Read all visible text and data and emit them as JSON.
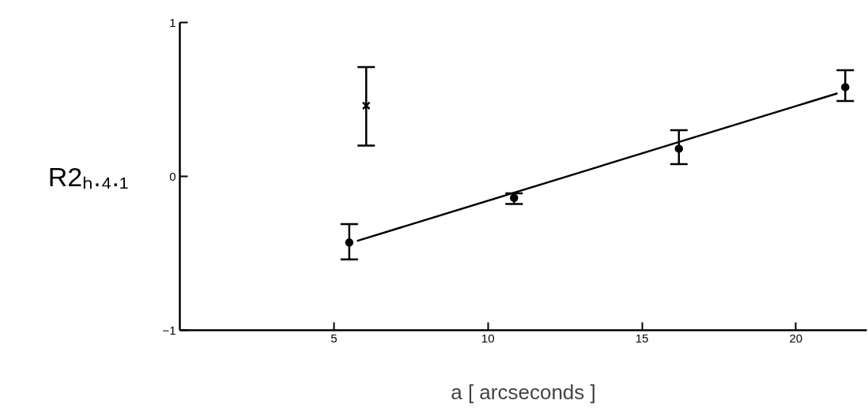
{
  "chart_data": {
    "type": "scatter",
    "xlabel": "a [ arcseconds ]",
    "ylabel": "R2ₕ.₄.₁",
    "xlim": [
      0,
      22.3
    ],
    "ylim": [
      -1,
      1
    ],
    "xticks": [
      5,
      10,
      15,
      20
    ],
    "yticks": [
      -1,
      0,
      1
    ],
    "grid": false,
    "series": [
      {
        "type": "scatter",
        "marker": "circle",
        "color": "#000000",
        "x": [
          5.5,
          10.85,
          16.2,
          21.6
        ],
        "values": [
          -0.43,
          -0.14,
          0.18,
          0.58
        ],
        "errors": [
          [
            -0.54,
            -0.31
          ],
          [
            -0.18,
            -0.11
          ],
          [
            0.08,
            0.3
          ],
          [
            0.49,
            0.69
          ]
        ]
      },
      {
        "type": "scatter",
        "marker": "cross",
        "color": "#000000",
        "x": [
          6.05
        ],
        "values": [
          0.46
        ],
        "errors": [
          [
            0.2,
            0.71
          ]
        ]
      },
      {
        "type": "line",
        "marker": "none",
        "color": "#000000",
        "x": [
          5.75,
          21.35
        ],
        "values": [
          -0.42,
          0.54
        ]
      }
    ]
  }
}
